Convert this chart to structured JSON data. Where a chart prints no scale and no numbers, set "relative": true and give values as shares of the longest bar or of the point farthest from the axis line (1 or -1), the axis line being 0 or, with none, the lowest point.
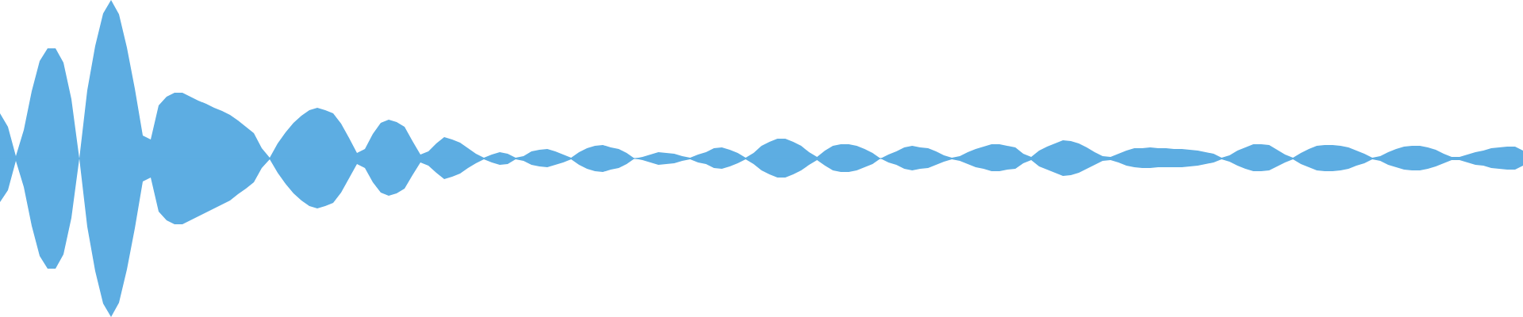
{
  "chart_data": {
    "type": "area",
    "relative": true,
    "categories": [
      null,
      null,
      null,
      null,
      null,
      null,
      null,
      null,
      null,
      null,
      null,
      null,
      null,
      null,
      null,
      null,
      null,
      null,
      null,
      null,
      null,
      null,
      null,
      null,
      null,
      null,
      null,
      null,
      null,
      null,
      null,
      null,
      null,
      null,
      null,
      null,
      null,
      null,
      null,
      null,
      null,
      null,
      null,
      null,
      null,
      null,
      null,
      null,
      null,
      null,
      null,
      null,
      null,
      null,
      null,
      null,
      null,
      null,
      null,
      null,
      null,
      null,
      null,
      null,
      null,
      null,
      null,
      null,
      null,
      null,
      null,
      null,
      null,
      null,
      null,
      null,
      null,
      null,
      null,
      null,
      null,
      null,
      null,
      null,
      null,
      null,
      null,
      null,
      null,
      null,
      null,
      null,
      null,
      null,
      null,
      null,
      null,
      null,
      null,
      null,
      null,
      null,
      null,
      null,
      null,
      null,
      null,
      null,
      null,
      null,
      null,
      null,
      null,
      null,
      null,
      null,
      null,
      null,
      null,
      null,
      null,
      null,
      null,
      null,
      null,
      null,
      null,
      null,
      null,
      null,
      null,
      null,
      null,
      null,
      null,
      null,
      null,
      null,
      null,
      null,
      null,
      null,
      null,
      null,
      null,
      null,
      null,
      null,
      null,
      null,
      null,
      null,
      null,
      null,
      null,
      null,
      null,
      null,
      null,
      null,
      null,
      null,
      null,
      null,
      null,
      null,
      null,
      null,
      null,
      null,
      null,
      null,
      null,
      null,
      null,
      null,
      null,
      null,
      null,
      null,
      null,
      null,
      null,
      null,
      null,
      null,
      null,
      null,
      null,
      null,
      null,
      null,
      null
    ],
    "series": [
      {
        "color": "#5dade2",
        "values": [
          0.285,
          0.2,
          0.015,
          0.18,
          0.425,
          0.615,
          0.695,
          0.695,
          0.605,
          0.375,
          0,
          0.43,
          0.71,
          0.915,
          1,
          0.91,
          0.7,
          0.44,
          0.145,
          0.12,
          0.335,
          0.39,
          0.415,
          0.415,
          0.39,
          0.365,
          0.345,
          0.32,
          0.3,
          0.275,
          0.24,
          0.2,
          0.16,
          0.065,
          0.005,
          0.095,
          0.165,
          0.225,
          0.27,
          0.305,
          0.32,
          0.305,
          0.285,
          0.22,
          0.13,
          0.035,
          0.06,
          0.155,
          0.225,
          0.245,
          0.23,
          0.2,
          0.11,
          0.025,
          0.045,
          0.095,
          0.135,
          0.12,
          0.1,
          0.065,
          0.03,
          0.005,
          0.025,
          0.04,
          0.03,
          0.005,
          0.015,
          0.045,
          0.055,
          0.06,
          0.045,
          0.025,
          0.005,
          0.04,
          0.065,
          0.08,
          0.085,
          0.07,
          0.06,
          0.035,
          0,
          0.01,
          0.025,
          0.04,
          0.035,
          0.03,
          0.015,
          0.005,
          0.025,
          0.04,
          0.065,
          0.07,
          0.055,
          0.035,
          0.005,
          0.035,
          0.08,
          0.105,
          0.125,
          0.125,
          0.105,
          0.08,
          0.04,
          0.01,
          0.05,
          0.08,
          0.09,
          0.09,
          0.08,
          0.06,
          0.035,
          0,
          0.025,
          0.045,
          0.07,
          0.08,
          0.07,
          0.065,
          0.045,
          0.02,
          0.005,
          0.015,
          0.04,
          0.06,
          0.075,
          0.09,
          0.09,
          0.08,
          0.07,
          0.03,
          0.01,
          0.05,
          0.075,
          0.095,
          0.115,
          0.11,
          0.095,
          0.07,
          0.04,
          0.015,
          0.01,
          0.03,
          0.05,
          0.065,
          0.065,
          0.07,
          0.065,
          0.065,
          0.06,
          0.06,
          0.055,
          0.05,
          0.04,
          0.03,
          0.005,
          0.02,
          0.05,
          0.07,
          0.09,
          0.09,
          0.085,
          0.055,
          0.025,
          0.005,
          0.035,
          0.06,
          0.08,
          0.085,
          0.085,
          0.08,
          0.07,
          0.05,
          0.03,
          0.005,
          0.015,
          0.04,
          0.06,
          0.075,
          0.08,
          0.08,
          0.07,
          0.055,
          0.03,
          0.01,
          0.01,
          0.025,
          0.04,
          0.05,
          0.065,
          0.07,
          0.075,
          0.075,
          0.05
        ]
      },
      {
        "color": "#5dade2",
        "values": [
          -0.275,
          -0.2,
          -0.015,
          -0.18,
          -0.425,
          -0.615,
          -0.695,
          -0.695,
          -0.605,
          -0.375,
          0,
          -0.43,
          -0.71,
          -0.915,
          -1,
          -0.91,
          -0.7,
          -0.44,
          -0.145,
          -0.12,
          -0.335,
          -0.39,
          -0.415,
          -0.415,
          -0.39,
          -0.365,
          -0.34,
          -0.315,
          -0.29,
          -0.265,
          -0.225,
          -0.19,
          -0.15,
          -0.06,
          -0.005,
          -0.09,
          -0.16,
          -0.22,
          -0.265,
          -0.3,
          -0.315,
          -0.3,
          -0.28,
          -0.215,
          -0.125,
          -0.035,
          -0.06,
          -0.15,
          -0.215,
          -0.235,
          -0.22,
          -0.19,
          -0.105,
          -0.025,
          -0.045,
          -0.09,
          -0.13,
          -0.115,
          -0.095,
          -0.06,
          -0.03,
          -0.005,
          -0.025,
          -0.04,
          -0.035,
          -0.005,
          -0.015,
          -0.04,
          -0.05,
          -0.055,
          -0.04,
          -0.025,
          -0.005,
          -0.04,
          -0.065,
          -0.08,
          -0.085,
          -0.07,
          -0.06,
          -0.035,
          0,
          -0.01,
          -0.025,
          -0.04,
          -0.035,
          -0.03,
          -0.015,
          -0.005,
          -0.025,
          -0.035,
          -0.06,
          -0.065,
          -0.05,
          -0.03,
          -0.005,
          -0.035,
          -0.075,
          -0.1,
          -0.12,
          -0.12,
          -0.1,
          -0.075,
          -0.04,
          -0.01,
          -0.045,
          -0.075,
          -0.085,
          -0.085,
          -0.075,
          -0.055,
          -0.035,
          0,
          -0.025,
          -0.04,
          -0.065,
          -0.075,
          -0.065,
          -0.06,
          -0.04,
          -0.02,
          -0.005,
          -0.015,
          -0.035,
          -0.055,
          -0.065,
          -0.08,
          -0.08,
          -0.07,
          -0.065,
          -0.03,
          -0.01,
          -0.05,
          -0.07,
          -0.09,
          -0.11,
          -0.105,
          -0.09,
          -0.065,
          -0.04,
          -0.015,
          -0.01,
          -0.025,
          -0.045,
          -0.055,
          -0.06,
          -0.06,
          -0.055,
          -0.055,
          -0.055,
          -0.055,
          -0.05,
          -0.045,
          -0.035,
          -0.025,
          -0.005,
          -0.02,
          -0.045,
          -0.065,
          -0.08,
          -0.08,
          -0.075,
          -0.05,
          -0.025,
          -0.005,
          -0.035,
          -0.055,
          -0.075,
          -0.08,
          -0.08,
          -0.075,
          -0.065,
          -0.045,
          -0.03,
          -0.005,
          -0.015,
          -0.04,
          -0.055,
          -0.07,
          -0.075,
          -0.075,
          -0.065,
          -0.05,
          -0.03,
          -0.01,
          -0.01,
          -0.025,
          -0.04,
          -0.045,
          -0.06,
          -0.065,
          -0.07,
          -0.07,
          -0.045
        ]
      }
    ],
    "ref_lines": [
      {
        "axis": "y",
        "value": 0,
        "color": "#5dade2"
      }
    ]
  }
}
